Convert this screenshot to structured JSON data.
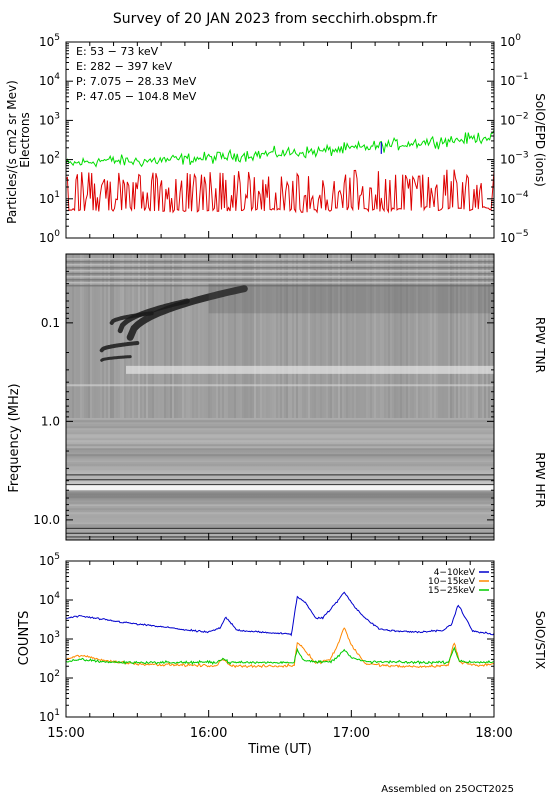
{
  "title": "Survey of 20 JAN 2023 from secchirh.obspm.fr",
  "footer": "Assembled on 25OCT2025",
  "chart_data": [
    {
      "type": "line",
      "panel": "epd",
      "ylabel_left_1": "Particles/(s cm2 sr Mev)",
      "ylabel_left_2": "Electrons",
      "ylabel_right": "SolO/EPD (ions)",
      "yscale": "log",
      "ylim": [
        1,
        100000
      ],
      "y_ticks": [
        {
          "base": "10",
          "exp": "0",
          "value": 1
        },
        {
          "base": "10",
          "exp": "1",
          "value": 10
        },
        {
          "base": "10",
          "exp": "2",
          "value": 100
        },
        {
          "base": "10",
          "exp": "3",
          "value": 1000
        },
        {
          "base": "10",
          "exp": "4",
          "value": 10000
        },
        {
          "base": "10",
          "exp": "5",
          "value": 100000
        }
      ],
      "y2lim": [
        1e-05,
        1
      ],
      "y2_ticks": [
        {
          "base": "10",
          "exp": "0",
          "value": 1
        },
        {
          "base": "10",
          "exp": "−1",
          "value": 0.1
        },
        {
          "base": "10",
          "exp": "−2",
          "value": 0.01
        },
        {
          "base": "10",
          "exp": "−3",
          "value": 0.001
        },
        {
          "base": "10",
          "exp": "−4",
          "value": 0.0001
        },
        {
          "base": "10",
          "exp": "−5",
          "value": 1e-05
        }
      ],
      "legend": [
        {
          "label": "E: 53 − 73 keV",
          "color": "#00dd00"
        },
        {
          "label": "E: 282 − 397 keV",
          "color": "#dd0000"
        },
        {
          "label": "P: 7.075 − 28.33 MeV",
          "color": "#000000"
        },
        {
          "label": "P: 47.05 − 104.8 MeV",
          "color": "#0000cc"
        }
      ],
      "series": [
        {
          "name": "E: 53 − 73 keV",
          "color": "#00dd00",
          "x": [
            15.0,
            15.25,
            15.5,
            15.75,
            16.0,
            16.25,
            16.5,
            16.75,
            17.0,
            17.25,
            17.5,
            17.75,
            18.0
          ],
          "y": [
            75,
            95,
            90,
            100,
            110,
            130,
            145,
            160,
            190,
            230,
            280,
            320,
            400
          ]
        },
        {
          "name": "E: 282 − 397 keV",
          "color": "#dd0000",
          "x": [
            15.0,
            15.25,
            15.5,
            15.75,
            16.0,
            16.25,
            16.5,
            16.75,
            17.0,
            17.25,
            17.5,
            17.75,
            18.0
          ],
          "y": [
            9,
            9,
            10,
            9,
            9,
            10,
            9,
            9,
            10,
            9,
            10,
            10,
            10
          ]
        },
        {
          "name": "P: 47.05 − 104.8 MeV",
          "color": "#0000cc",
          "x": [
            17.21
          ],
          "y": [
            200
          ]
        }
      ]
    },
    {
      "type": "heatmap",
      "panel": "rpw",
      "ylabel": "Frequency (MHz)",
      "yscale": "log",
      "ylim_reversed": [
        0.02,
        16.0
      ],
      "y_ticks": [
        "0.1",
        "1.0",
        "10.0"
      ],
      "band_labels": [
        "RPW TNR",
        "RPW HFR"
      ],
      "tnr_hfr_boundary_mhz": 0.93
    },
    {
      "type": "line",
      "panel": "stix",
      "ylabel": "COUNTS",
      "ylabel_right": "SolO/STIX",
      "yscale": "log",
      "ylim": [
        10,
        100000
      ],
      "y_ticks": [
        {
          "base": "10",
          "exp": "1",
          "value": 10
        },
        {
          "base": "10",
          "exp": "2",
          "value": 100
        },
        {
          "base": "10",
          "exp": "3",
          "value": 1000
        },
        {
          "base": "10",
          "exp": "4",
          "value": 10000
        },
        {
          "base": "10",
          "exp": "5",
          "value": 100000
        }
      ],
      "legend": [
        {
          "label": "4−10keV",
          "color": "#0000cc"
        },
        {
          "label": "10−15keV",
          "color": "#ff8800"
        },
        {
          "label": "15−25keV",
          "color": "#00cc00"
        }
      ],
      "series": [
        {
          "name": "4−10keV",
          "color": "#0000cc",
          "x": [
            15.0,
            15.1,
            15.3,
            15.5,
            15.7,
            15.9,
            16.0,
            16.08,
            16.12,
            16.2,
            16.35,
            16.5,
            16.58,
            16.62,
            16.68,
            16.75,
            16.8,
            16.9,
            16.95,
            17.02,
            17.1,
            17.2,
            17.3,
            17.5,
            17.65,
            17.7,
            17.75,
            17.85,
            18.0
          ],
          "y": [
            3400,
            3900,
            3000,
            2400,
            2000,
            1600,
            1500,
            1900,
            3600,
            1700,
            1500,
            1400,
            1300,
            12000,
            8500,
            3500,
            3500,
            9000,
            16000,
            7000,
            3300,
            1800,
            1600,
            1500,
            1700,
            2300,
            7500,
            1600,
            1300
          ]
        },
        {
          "name": "10−15keV",
          "color": "#ff8800",
          "x": [
            15.0,
            15.1,
            15.3,
            15.5,
            15.7,
            15.9,
            16.05,
            16.1,
            16.15,
            16.3,
            16.5,
            16.6,
            16.62,
            16.68,
            16.75,
            16.85,
            16.9,
            16.95,
            17.0,
            17.1,
            17.3,
            17.5,
            17.68,
            17.72,
            17.76,
            17.9,
            18.0
          ],
          "y": [
            300,
            380,
            270,
            230,
            220,
            210,
            205,
            300,
            210,
            200,
            200,
            210,
            850,
            500,
            240,
            300,
            650,
            2000,
            700,
            230,
            200,
            195,
            210,
            850,
            250,
            210,
            230
          ]
        },
        {
          "name": "15−25keV",
          "color": "#00cc00",
          "x": [
            15.0,
            15.1,
            15.3,
            15.5,
            15.7,
            15.9,
            16.05,
            16.1,
            16.15,
            16.3,
            16.5,
            16.6,
            16.62,
            16.66,
            16.75,
            16.85,
            16.9,
            16.95,
            17.0,
            17.1,
            17.3,
            17.5,
            17.68,
            17.72,
            17.76,
            17.9,
            18.0
          ],
          "y": [
            250,
            300,
            255,
            250,
            250,
            250,
            255,
            310,
            250,
            250,
            250,
            255,
            550,
            300,
            255,
            260,
            330,
            560,
            330,
            260,
            255,
            250,
            255,
            600,
            260,
            255,
            260
          ]
        }
      ]
    }
  ],
  "time_axis": {
    "label": "Time (UT)",
    "xlim": [
      15.0,
      18.0
    ],
    "ticks": [
      {
        "label": "15:00",
        "value": 15.0
      },
      {
        "label": "16:00",
        "value": 16.0
      },
      {
        "label": "17:00",
        "value": 17.0
      },
      {
        "label": "18:00",
        "value": 18.0
      }
    ]
  }
}
